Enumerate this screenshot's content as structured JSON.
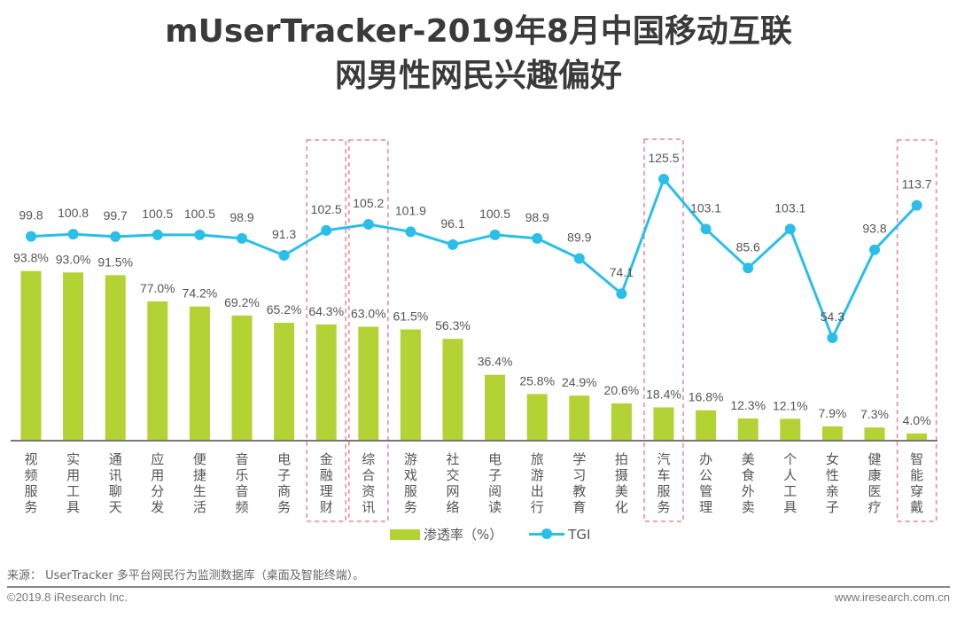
{
  "header": {
    "title_line1": "mUserTracker-2019年8月中国移动互联",
    "title_line2": "网男性网民兴趣偏好"
  },
  "chart_data": {
    "type": "bar+line",
    "title": "mUserTracker-2019年8月中国移动互联网男性网民兴趣偏好",
    "categories": [
      "视频服务",
      "实用工具",
      "通讯聊天",
      "应用分发",
      "便捷生活",
      "音乐音频",
      "电子商务",
      "金融理财",
      "综合资讯",
      "游戏服务",
      "社交网络",
      "电子阅读",
      "旅游出行",
      "学习教育",
      "拍摄美化",
      "汽车服务",
      "办公管理",
      "美食外卖",
      "个人工具",
      "女性亲子",
      "健康医疗",
      "智能穿戴"
    ],
    "series": [
      {
        "name": "渗透率（%）",
        "type": "bar",
        "color": "#b3d234",
        "unit": "%",
        "values": [
          93.8,
          93.0,
          91.5,
          77.0,
          74.2,
          69.2,
          65.2,
          64.3,
          63.0,
          61.5,
          56.3,
          36.4,
          25.8,
          24.9,
          20.6,
          18.4,
          16.8,
          12.3,
          12.1,
          7.9,
          7.3,
          4.0
        ]
      },
      {
        "name": "TGI",
        "type": "line",
        "color": "#29bfe8",
        "values": [
          99.8,
          100.8,
          99.7,
          100.5,
          100.5,
          98.9,
          91.3,
          102.5,
          105.2,
          101.9,
          96.1,
          100.5,
          98.9,
          89.9,
          74.1,
          125.5,
          103.1,
          85.6,
          103.1,
          54.3,
          93.8,
          113.7
        ]
      }
    ],
    "highlighted_categories": [
      "金融理财",
      "综合资讯",
      "汽车服务",
      "智能穿戴"
    ],
    "highlight_color": "#e8889a",
    "legend": [
      "渗透率（%）",
      "TGI"
    ],
    "legend_position": "bottom-center",
    "grid": false,
    "xlabel": "",
    "ylabel": ""
  },
  "legend": {
    "bar_label": "渗透率（%）",
    "line_label": "TGI"
  },
  "footer": {
    "source": "来源： UserTracker 多平台网民行为监测数据库（桌面及智能终端）。",
    "copyright": "©2019.8 iResearch Inc.",
    "website": "www.iresearch.com.cn"
  }
}
